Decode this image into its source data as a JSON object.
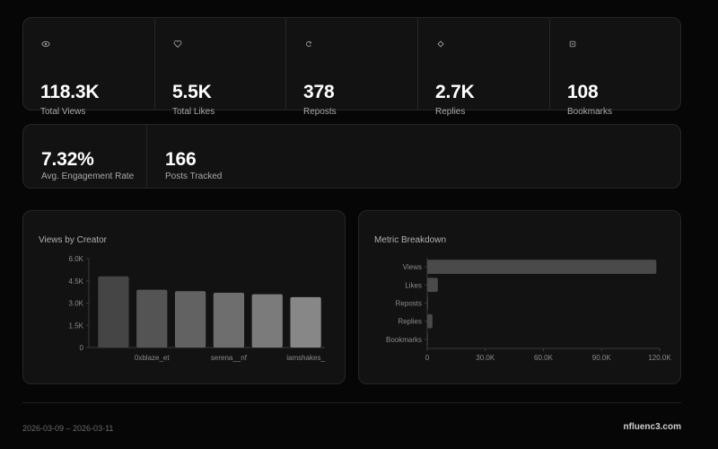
{
  "stats": [
    {
      "value": "118.3K",
      "label": "Total Views",
      "icon": "eye-icon"
    },
    {
      "value": "5.5K",
      "label": "Total Likes",
      "icon": "heart-icon"
    },
    {
      "value": "378",
      "label": "Reposts",
      "icon": "repost-icon"
    },
    {
      "value": "2.7K",
      "label": "Replies",
      "icon": "reply-icon"
    },
    {
      "value": "108",
      "label": "Bookmarks",
      "icon": "bookmark-icon"
    }
  ],
  "stats2": [
    {
      "value": "7.32%",
      "label": "Avg. Engagement Rate"
    },
    {
      "value": "166",
      "label": "Posts Tracked"
    }
  ],
  "views_chart": {
    "title": "Views by Creator"
  },
  "metric_chart": {
    "title": "Metric Breakdown"
  },
  "chart_data": [
    {
      "type": "bar",
      "title": "Views by Creator",
      "categories": [
        "",
        "0xblaze_et",
        "",
        "serena__nf",
        "",
        "iamshakes_"
      ],
      "values": [
        4800,
        3900,
        3800,
        3700,
        3600,
        3400
      ],
      "ylim": [
        0,
        6000
      ],
      "yticks": [
        "0",
        "1.5K",
        "3.0K",
        "4.5K",
        "6.0K"
      ],
      "ytick_values": [
        0,
        1500,
        3000,
        4500,
        6000
      ],
      "bar_colors": [
        "#454545",
        "#545454",
        "#626262",
        "#6e6e6e",
        "#7b7b7b",
        "#878787"
      ],
      "grid": false
    },
    {
      "type": "bar",
      "orientation": "horizontal",
      "title": "Metric Breakdown",
      "categories": [
        "Views",
        "Likes",
        "Reposts",
        "Replies",
        "Bookmarks"
      ],
      "values": [
        118300,
        5500,
        378,
        2700,
        108
      ],
      "xlim": [
        0,
        120000
      ],
      "xticks": [
        "0",
        "30.0K",
        "60.0K",
        "90.0K",
        "120.0K"
      ],
      "xtick_values": [
        0,
        30000,
        60000,
        90000,
        120000
      ],
      "bar_color": "#4a4a4a",
      "grid": false
    }
  ],
  "footer": {
    "date_range": "2026-03-09 – 2026-03-11",
    "brand": "nfluenc3.com"
  }
}
